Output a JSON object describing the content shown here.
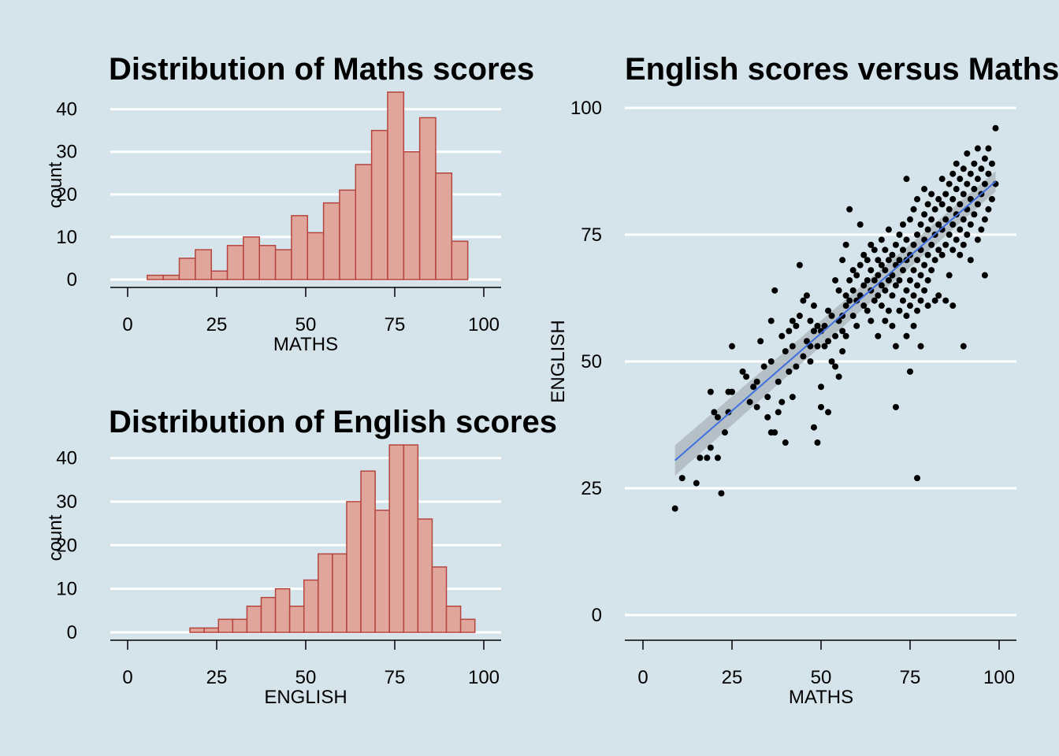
{
  "colors": {
    "background": "#d5e4eb",
    "bar_fill": "#e0a59b",
    "bar_stroke": "#b5453f",
    "point": "#000000",
    "fit_line": "#3f6fe0",
    "ribbon": "#a9b4b9"
  },
  "chart_data": [
    {
      "type": "bar",
      "title": "Distribution of Maths scores",
      "xlabel": "MATHS",
      "ylabel": "count",
      "xlim": [
        0,
        100
      ],
      "ylim": [
        0,
        44
      ],
      "xticks": [
        0,
        25,
        50,
        75,
        100
      ],
      "yticks": [
        0,
        10,
        20,
        30,
        40
      ],
      "grid": "horizontal",
      "bin_width": 4.5,
      "bins_start": 5.5,
      "values": [
        1,
        1,
        5,
        7,
        2,
        8,
        10,
        8,
        7,
        15,
        11,
        18,
        21,
        27,
        35,
        44,
        30,
        38,
        25,
        9
      ]
    },
    {
      "type": "bar",
      "title": "Distribution of English scores",
      "xlabel": "ENGLISH",
      "ylabel": "count",
      "xlim": [
        0,
        100
      ],
      "ylim": [
        0,
        43
      ],
      "xticks": [
        0,
        25,
        50,
        75,
        100
      ],
      "yticks": [
        0,
        10,
        20,
        30,
        40
      ],
      "grid": "horizontal",
      "bin_width": 4,
      "bins_start": 17.5,
      "values": [
        1,
        1,
        3,
        3,
        6,
        8,
        10,
        6,
        12,
        18,
        18,
        30,
        37,
        28,
        43,
        43,
        26,
        15,
        6,
        3
      ]
    },
    {
      "type": "scatter",
      "title": "English scores versus Maths scores",
      "xlabel": "MATHS",
      "ylabel": "ENGLISH",
      "xlim": [
        0,
        100
      ],
      "ylim": [
        0,
        100
      ],
      "xticks": [
        0,
        25,
        50,
        75,
        100
      ],
      "yticks": [
        0,
        25,
        50,
        75,
        100
      ],
      "grid": "horizontal",
      "fit": {
        "x": [
          9,
          99
        ],
        "y": [
          30.5,
          85.5
        ],
        "se_low": [
          27.5,
          83.5
        ],
        "se_high": [
          33.5,
          87.5
        ]
      },
      "points": [
        [
          9,
          21
        ],
        [
          11,
          27
        ],
        [
          15,
          26
        ],
        [
          16,
          31
        ],
        [
          18,
          31
        ],
        [
          19,
          33
        ],
        [
          19,
          44
        ],
        [
          20,
          40
        ],
        [
          21,
          39
        ],
        [
          22,
          24
        ],
        [
          21,
          31
        ],
        [
          23,
          36
        ],
        [
          24,
          40
        ],
        [
          24,
          44
        ],
        [
          25,
          44
        ],
        [
          25,
          53
        ],
        [
          28,
          48
        ],
        [
          29,
          47
        ],
        [
          30,
          42
        ],
        [
          31,
          45
        ],
        [
          32,
          41
        ],
        [
          32,
          46
        ],
        [
          33,
          54
        ],
        [
          34,
          49
        ],
        [
          35,
          39
        ],
        [
          35,
          43
        ],
        [
          36,
          50
        ],
        [
          36,
          58
        ],
        [
          36,
          36
        ],
        [
          37,
          64
        ],
        [
          37,
          36
        ],
        [
          38,
          40
        ],
        [
          38,
          46
        ],
        [
          39,
          42
        ],
        [
          39,
          55
        ],
        [
          40,
          34
        ],
        [
          40,
          52
        ],
        [
          41,
          56
        ],
        [
          41,
          48
        ],
        [
          42,
          58
        ],
        [
          42,
          43
        ],
        [
          42,
          53
        ],
        [
          43,
          57
        ],
        [
          43,
          49
        ],
        [
          44,
          69
        ],
        [
          44,
          59
        ],
        [
          45,
          51
        ],
        [
          45,
          62
        ],
        [
          46,
          63
        ],
        [
          46,
          54
        ],
        [
          47,
          50
        ],
        [
          47,
          58
        ],
        [
          47,
          53
        ],
        [
          48,
          56
        ],
        [
          48,
          61
        ],
        [
          48,
          37
        ],
        [
          49,
          34
        ],
        [
          49,
          53
        ],
        [
          49,
          57
        ],
        [
          50,
          45
        ],
        [
          50,
          56
        ],
        [
          50,
          41
        ],
        [
          51,
          53
        ],
        [
          51,
          57
        ],
        [
          52,
          60
        ],
        [
          52,
          54
        ],
        [
          52,
          40
        ],
        [
          53,
          50
        ],
        [
          53,
          59
        ],
        [
          54,
          55
        ],
        [
          54,
          66
        ],
        [
          54,
          49
        ],
        [
          55,
          47
        ],
        [
          55,
          58
        ],
        [
          55,
          64
        ],
        [
          56,
          59
        ],
        [
          56,
          56
        ],
        [
          56,
          52
        ],
        [
          56,
          70
        ],
        [
          57,
          55
        ],
        [
          57,
          61
        ],
        [
          57,
          63
        ],
        [
          57,
          73
        ],
        [
          58,
          62
        ],
        [
          58,
          66
        ],
        [
          58,
          80
        ],
        [
          59,
          59
        ],
        [
          59,
          64
        ],
        [
          59,
          68
        ],
        [
          60,
          57
        ],
        [
          60,
          62
        ],
        [
          60,
          67
        ],
        [
          61,
          63
        ],
        [
          61,
          69
        ],
        [
          61,
          77
        ],
        [
          62,
          61
        ],
        [
          62,
          65
        ],
        [
          62,
          71
        ],
        [
          63,
          60
        ],
        [
          63,
          66
        ],
        [
          63,
          70
        ],
        [
          64,
          58
        ],
        [
          64,
          64
        ],
        [
          64,
          68
        ],
        [
          64,
          73
        ],
        [
          65,
          62
        ],
        [
          65,
          66
        ],
        [
          65,
          72
        ],
        [
          66,
          55
        ],
        [
          66,
          63
        ],
        [
          66,
          67
        ],
        [
          66,
          70
        ],
        [
          67,
          61
        ],
        [
          67,
          65
        ],
        [
          67,
          69
        ],
        [
          67,
          74
        ],
        [
          68,
          58
        ],
        [
          68,
          64
        ],
        [
          68,
          68
        ],
        [
          68,
          72
        ],
        [
          69,
          60
        ],
        [
          69,
          66
        ],
        [
          69,
          70
        ],
        [
          69,
          76
        ],
        [
          70,
          57
        ],
        [
          70,
          63
        ],
        [
          70,
          67
        ],
        [
          70,
          71
        ],
        [
          71,
          41
        ],
        [
          71,
          65
        ],
        [
          71,
          69
        ],
        [
          71,
          73
        ],
        [
          71,
          53
        ],
        [
          72,
          60
        ],
        [
          72,
          66
        ],
        [
          72,
          70
        ],
        [
          72,
          75
        ],
        [
          73,
          62
        ],
        [
          73,
          68
        ],
        [
          73,
          72
        ],
        [
          73,
          77
        ],
        [
          74,
          55
        ],
        [
          74,
          59
        ],
        [
          74,
          64
        ],
        [
          74,
          70
        ],
        [
          74,
          74
        ],
        [
          74,
          86
        ],
        [
          75,
          48
        ],
        [
          75,
          61
        ],
        [
          75,
          66
        ],
        [
          75,
          71
        ],
        [
          75,
          78
        ],
        [
          76,
          57
        ],
        [
          76,
          63
        ],
        [
          76,
          68
        ],
        [
          76,
          73
        ],
        [
          76,
          80
        ],
        [
          77,
          27
        ],
        [
          77,
          60
        ],
        [
          77,
          65
        ],
        [
          77,
          70
        ],
        [
          77,
          75
        ],
        [
          77,
          82
        ],
        [
          78,
          53
        ],
        [
          78,
          62
        ],
        [
          78,
          67
        ],
        [
          78,
          72
        ],
        [
          78,
          77
        ],
        [
          79,
          64
        ],
        [
          79,
          69
        ],
        [
          79,
          74
        ],
        [
          79,
          79
        ],
        [
          79,
          84
        ],
        [
          80,
          61
        ],
        [
          80,
          66
        ],
        [
          80,
          71
        ],
        [
          80,
          76
        ],
        [
          80,
          81
        ],
        [
          81,
          68
        ],
        [
          81,
          73
        ],
        [
          81,
          78
        ],
        [
          81,
          83
        ],
        [
          82,
          62
        ],
        [
          82,
          70
        ],
        [
          82,
          75
        ],
        [
          82,
          80
        ],
        [
          83,
          63
        ],
        [
          83,
          72
        ],
        [
          83,
          77
        ],
        [
          83,
          82
        ],
        [
          84,
          71
        ],
        [
          84,
          76
        ],
        [
          84,
          81
        ],
        [
          84,
          86
        ],
        [
          85,
          62
        ],
        [
          85,
          73
        ],
        [
          85,
          78
        ],
        [
          85,
          83
        ],
        [
          86,
          67
        ],
        [
          86,
          75
        ],
        [
          86,
          80
        ],
        [
          86,
          85
        ],
        [
          87,
          61
        ],
        [
          87,
          72
        ],
        [
          87,
          77
        ],
        [
          87,
          82
        ],
        [
          87,
          87
        ],
        [
          88,
          74
        ],
        [
          88,
          79
        ],
        [
          88,
          84
        ],
        [
          88,
          89
        ],
        [
          89,
          71
        ],
        [
          89,
          76
        ],
        [
          89,
          81
        ],
        [
          89,
          86
        ],
        [
          90,
          53
        ],
        [
          90,
          73
        ],
        [
          90,
          78
        ],
        [
          90,
          83
        ],
        [
          90,
          88
        ],
        [
          91,
          75
        ],
        [
          91,
          80
        ],
        [
          91,
          85
        ],
        [
          91,
          91
        ],
        [
          92,
          70
        ],
        [
          92,
          77
        ],
        [
          92,
          82
        ],
        [
          92,
          87
        ],
        [
          93,
          79
        ],
        [
          93,
          84
        ],
        [
          93,
          89
        ],
        [
          94,
          74
        ],
        [
          94,
          81
        ],
        [
          94,
          86
        ],
        [
          94,
          92
        ],
        [
          95,
          76
        ],
        [
          95,
          83
        ],
        [
          95,
          88
        ],
        [
          96,
          67
        ],
        [
          96,
          78
        ],
        [
          96,
          85
        ],
        [
          96,
          90
        ],
        [
          97,
          80
        ],
        [
          97,
          87
        ],
        [
          97,
          92
        ],
        [
          98,
          82
        ],
        [
          98,
          89
        ],
        [
          99,
          85
        ],
        [
          99,
          96
        ]
      ]
    }
  ]
}
